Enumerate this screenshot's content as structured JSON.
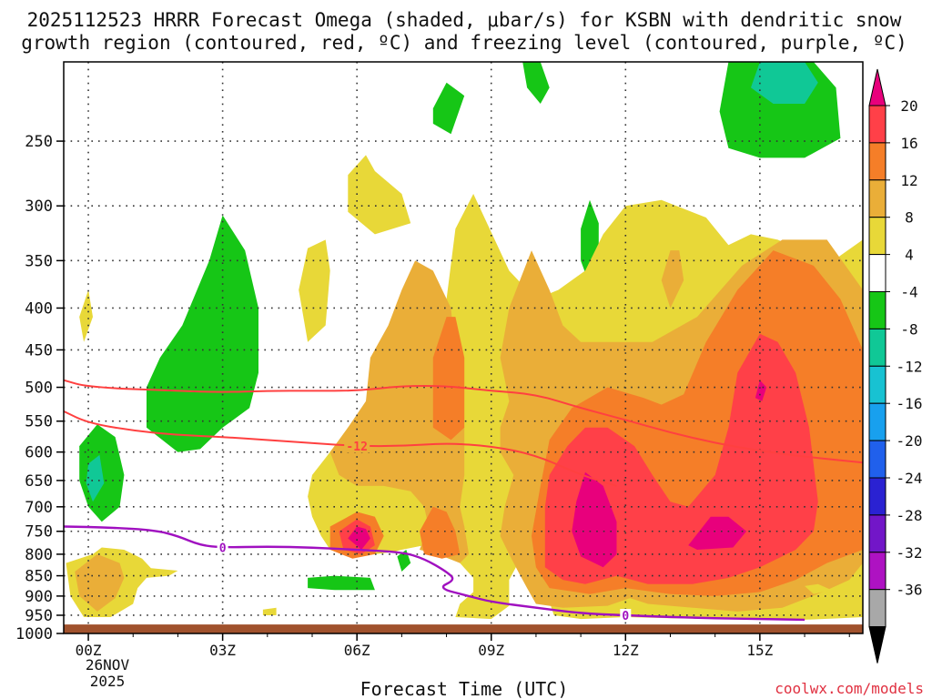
{
  "title_line1": "2025112523 HRRR Forecast Omega (shaded, μbar/s) for KSBN with dendritic snow",
  "title_line2": "growth region (contoured, red, ºC) and freezing level (contoured, purple, ºC)",
  "credit": "coolwx.com/models",
  "chart_data": {
    "type": "heatmap",
    "xlabel": "Forecast Time (UTC)",
    "ylabel": "",
    "x_ticks": [
      {
        "label": "00Z",
        "hour": 0
      },
      {
        "label": "03Z",
        "hour": 3
      },
      {
        "label": "06Z",
        "hour": 6
      },
      {
        "label": "09Z",
        "hour": 9
      },
      {
        "label": "12Z",
        "hour": 12
      },
      {
        "label": "15Z",
        "hour": 15
      }
    ],
    "x_date_line1": "26NOV",
    "x_date_line2": "2025",
    "xlim": [
      -0.55,
      17.3
    ],
    "y_ticks": [
      250,
      300,
      350,
      400,
      450,
      500,
      550,
      600,
      650,
      700,
      750,
      800,
      850,
      900,
      950,
      1000
    ],
    "ylim_hPa": [
      200,
      1000
    ],
    "y_scale": "log-pressure",
    "grid": true,
    "ground_color": "#a0522d",
    "ground_top_hPa": 975,
    "colorbar": {
      "ticks": [
        "20",
        "16",
        "12",
        "8",
        "4",
        "-4",
        "-8",
        "-12",
        "-16",
        "-20",
        "-24",
        "-28",
        "-32",
        "-36"
      ],
      "bins": [
        "#ff4048",
        "#f57e28",
        "#eaae38",
        "#e8d838",
        "#ffffff",
        "#16c616",
        "#10c896",
        "#18c2d2",
        "#18a0ee",
        "#2060ec",
        "#2a22d2",
        "#7216c8",
        "#ae12c2",
        "#a8a8a8"
      ],
      "top_arrow_color": "#e8007c",
      "bottom_arrow_color": "#000000"
    },
    "omega_levels": [
      {
        "level": "-8",
        "color": "#16c616"
      },
      {
        "level": "-12",
        "color": "#10c896"
      },
      {
        "level": "4",
        "color": "#e8d838"
      },
      {
        "level": "8",
        "color": "#eaae38"
      },
      {
        "level": "12",
        "color": "#f57e28"
      },
      {
        "level": "16",
        "color": "#ff4048"
      },
      {
        "level": "20",
        "color": "#e8007c"
      }
    ],
    "dgz_contours": [
      {
        "label": "-12",
        "color": "#ff4040",
        "points": [
          [
            -0.55,
            490
          ],
          [
            0,
            500
          ],
          [
            2,
            505
          ],
          [
            3,
            507
          ],
          [
            4,
            505
          ],
          [
            5,
            505
          ],
          [
            6,
            505
          ],
          [
            7,
            498
          ],
          [
            8,
            498
          ],
          [
            9,
            505
          ],
          [
            10,
            510
          ],
          [
            11,
            530
          ],
          [
            12,
            548
          ],
          [
            13,
            568
          ],
          [
            14,
            585
          ],
          [
            15,
            598
          ],
          [
            16,
            608
          ],
          [
            17.3,
            618
          ]
        ]
      },
      {
        "label": "-12",
        "label_at": [
          6,
          590
        ],
        "color": "#ff4040",
        "points": [
          [
            -0.55,
            535
          ],
          [
            0,
            553
          ],
          [
            1,
            565
          ],
          [
            2,
            572
          ],
          [
            3,
            575
          ],
          [
            4,
            580
          ],
          [
            5,
            585
          ],
          [
            6,
            590
          ],
          [
            7,
            590
          ],
          [
            8,
            585
          ],
          [
            9,
            590
          ],
          [
            10,
            605
          ],
          [
            11,
            640
          ],
          [
            11.8,
            660
          ]
        ]
      }
    ],
    "freezing_contours": [
      {
        "label": "0",
        "color": "#a010c0",
        "points": [
          [
            -0.55,
            740
          ],
          [
            0.5,
            742
          ],
          [
            1.5,
            748
          ],
          [
            2,
            760
          ],
          [
            2.5,
            780
          ],
          [
            3,
            785
          ],
          [
            4,
            783
          ],
          [
            5,
            785
          ],
          [
            6,
            790
          ],
          [
            7,
            795
          ],
          [
            7.5,
            810
          ],
          [
            8,
            840
          ],
          [
            8.2,
            860
          ],
          [
            7.8,
            880
          ],
          [
            8.5,
            900
          ],
          [
            9,
            915
          ],
          [
            10,
            930
          ],
          [
            11,
            945
          ],
          [
            12,
            950
          ],
          [
            13,
            955
          ],
          [
            14,
            958
          ],
          [
            15,
            960
          ],
          [
            16,
            962
          ]
        ]
      }
    ]
  }
}
